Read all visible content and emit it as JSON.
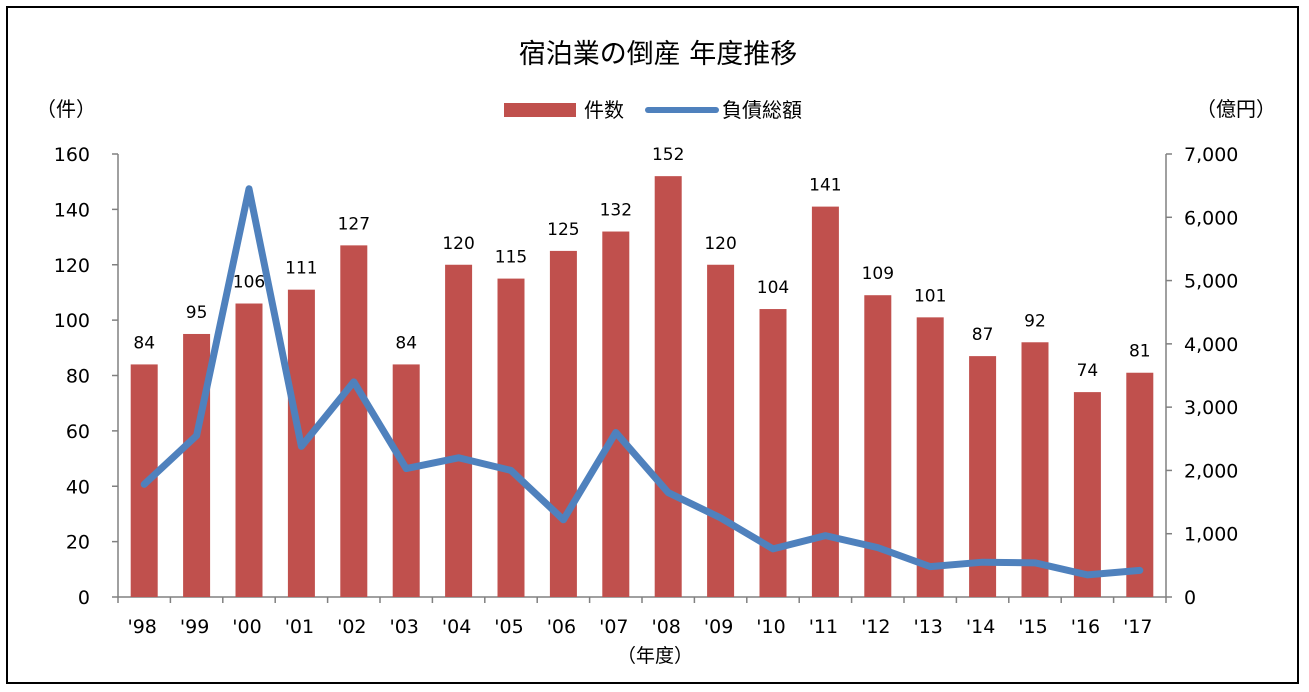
{
  "chart_data": {
    "type": "bar+line",
    "title": "宿泊業の倒産 年度推移",
    "xlabel": "（年度）",
    "ylabel_left": "（件）",
    "ylabel_right": "（億円）",
    "categories": [
      "'98",
      "'99",
      "'00",
      "'01",
      "'02",
      "'03",
      "'04",
      "'05",
      "'06",
      "'07",
      "'08",
      "'09",
      "'10",
      "'11",
      "'12",
      "'13",
      "'14",
      "'15",
      "'16",
      "'17"
    ],
    "series": [
      {
        "name": "件数",
        "type": "bar",
        "axis": "left",
        "color": "#c0504d",
        "values": [
          84,
          95,
          106,
          111,
          127,
          84,
          120,
          115,
          125,
          132,
          152,
          120,
          104,
          141,
          109,
          101,
          87,
          92,
          74,
          81
        ]
      },
      {
        "name": "負債総額",
        "type": "line",
        "axis": "right",
        "color": "#4f81bd",
        "values": [
          1780,
          2550,
          6450,
          2380,
          3400,
          2030,
          2200,
          2000,
          1220,
          2600,
          1650,
          1250,
          760,
          970,
          780,
          480,
          550,
          540,
          350,
          420
        ]
      }
    ],
    "y_left": {
      "min": 0,
      "max": 160,
      "ticks": [
        "0",
        "20",
        "40",
        "60",
        "80",
        "100",
        "120",
        "140",
        "160"
      ]
    },
    "y_right": {
      "min": 0,
      "max": 7000,
      "ticks": [
        "0",
        "1,000",
        "2,000",
        "3,000",
        "4,000",
        "5,000",
        "6,000",
        "7,000"
      ]
    },
    "legend": {
      "position": "top-center"
    },
    "grid": false
  }
}
